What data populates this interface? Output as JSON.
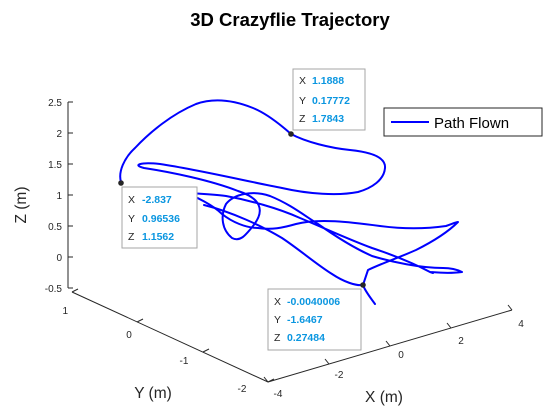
{
  "chart_data": {
    "type": "line",
    "title": "3D Crazyflie Trajectory",
    "xlabel": "X (m)",
    "ylabel": "Y (m)",
    "zlabel": "Z (m)",
    "xlim": [
      -4,
      4
    ],
    "ylim": [
      -2,
      1
    ],
    "zlim": [
      -0.5,
      2.5
    ],
    "x_ticks": [
      "-4",
      "-2",
      "0",
      "2",
      "4"
    ],
    "y_ticks": [
      "1",
      "0",
      "-1",
      "-2"
    ],
    "z_ticks": [
      "2.5",
      "2",
      "1.5",
      "1",
      "0.5",
      "0",
      "-0.5"
    ],
    "legend": {
      "label": "Path Flown",
      "position": "top-right"
    },
    "series": [
      {
        "name": "Path Flown",
        "color": "#0000ff"
      }
    ],
    "datatips": [
      {
        "key_x": "X",
        "x": "1.1888",
        "key_y": "Y",
        "y": "0.17772",
        "key_z": "Z",
        "z": "1.7843"
      },
      {
        "key_x": "X",
        "x": "-2.837",
        "key_y": "Y",
        "y": "0.96536",
        "key_z": "Z",
        "z": "1.1562"
      },
      {
        "key_x": "X",
        "x": "-0.0040006",
        "key_y": "Y",
        "y": "-1.6467",
        "key_z": "Z",
        "z": "0.27484"
      }
    ]
  }
}
